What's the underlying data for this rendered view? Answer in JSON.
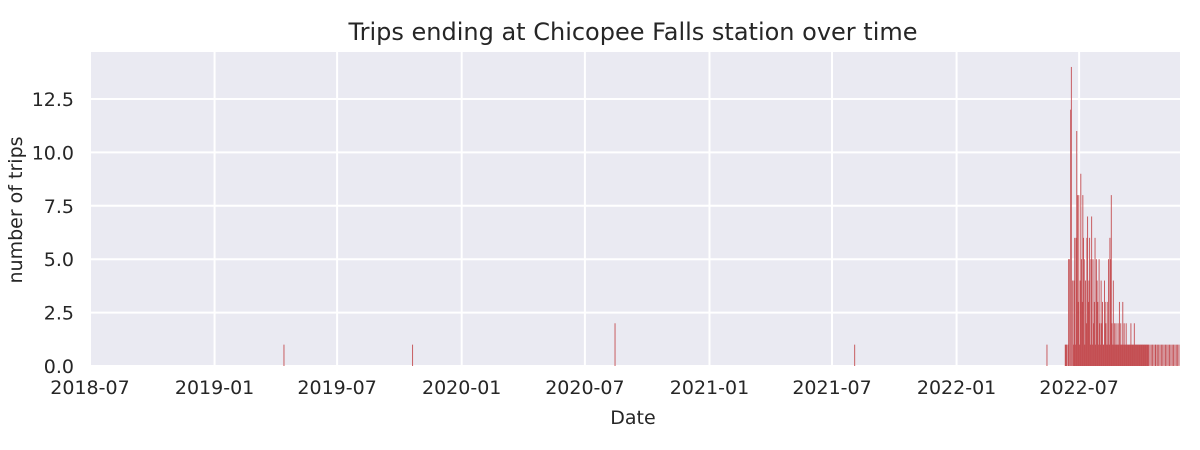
{
  "chart_data": {
    "type": "bar",
    "title": "Trips ending at Chicopee Falls station over time",
    "xlabel": "Date",
    "ylabel": "number of trips",
    "xlim": [
      "2018-07-01",
      "2022-11-27"
    ],
    "ylim": [
      0,
      14.7
    ],
    "x_ticks": [
      "2018-07",
      "2019-01",
      "2019-07",
      "2020-01",
      "2020-07",
      "2021-01",
      "2021-07",
      "2022-01",
      "2022-07"
    ],
    "y_ticks": [
      0.0,
      2.5,
      5.0,
      7.5,
      10.0,
      12.5
    ],
    "y_tick_labels": [
      "0.0",
      "2.5",
      "5.0",
      "7.5",
      "10.0",
      "12.5"
    ],
    "grid": true,
    "bar_color": "#c44e52",
    "plot_background": "#eaeaf2",
    "grid_color": "#ffffff",
    "series": [
      {
        "x": [
          "2019-04-13",
          "2019-10-20",
          "2020-08-14",
          "2021-08-03",
          "2022-05-14",
          "2022-06-10",
          "2022-06-11",
          "2022-06-12",
          "2022-06-14",
          "2022-06-15",
          "2022-06-16",
          "2022-06-18",
          "2022-06-19",
          "2022-06-21",
          "2022-06-22",
          "2022-06-23",
          "2022-06-24",
          "2022-06-25",
          "2022-06-26",
          "2022-06-27",
          "2022-06-28",
          "2022-06-29",
          "2022-06-30",
          "2022-07-01",
          "2022-07-02",
          "2022-07-03",
          "2022-07-04",
          "2022-07-05",
          "2022-07-06",
          "2022-07-07",
          "2022-07-08",
          "2022-07-09",
          "2022-07-10",
          "2022-07-11",
          "2022-07-12",
          "2022-07-13",
          "2022-07-14",
          "2022-07-15",
          "2022-07-16",
          "2022-07-17",
          "2022-07-18",
          "2022-07-19",
          "2022-07-20",
          "2022-07-21",
          "2022-07-22",
          "2022-07-23",
          "2022-07-24",
          "2022-07-25",
          "2022-07-26",
          "2022-07-27",
          "2022-07-28",
          "2022-07-29",
          "2022-07-30",
          "2022-07-31",
          "2022-08-01",
          "2022-08-02",
          "2022-08-03",
          "2022-08-04",
          "2022-08-05",
          "2022-08-06",
          "2022-08-07",
          "2022-08-08",
          "2022-08-09",
          "2022-08-10",
          "2022-08-11",
          "2022-08-12",
          "2022-08-13",
          "2022-08-14",
          "2022-08-15",
          "2022-08-16",
          "2022-08-17",
          "2022-08-18",
          "2022-08-19",
          "2022-08-20",
          "2022-08-21",
          "2022-08-22",
          "2022-08-23",
          "2022-08-24",
          "2022-08-25",
          "2022-08-26",
          "2022-08-27",
          "2022-08-28",
          "2022-08-29",
          "2022-08-30",
          "2022-08-31",
          "2022-09-01",
          "2022-09-02",
          "2022-09-03",
          "2022-09-04",
          "2022-09-05",
          "2022-09-06",
          "2022-09-07",
          "2022-09-08",
          "2022-09-09",
          "2022-09-10",
          "2022-09-11",
          "2022-09-12",
          "2022-09-13",
          "2022-09-14",
          "2022-09-15",
          "2022-09-16",
          "2022-09-17",
          "2022-09-18",
          "2022-09-19",
          "2022-09-20",
          "2022-09-21",
          "2022-09-22",
          "2022-09-23",
          "2022-09-24",
          "2022-09-25",
          "2022-09-26",
          "2022-09-27",
          "2022-09-28",
          "2022-09-29",
          "2022-09-30",
          "2022-10-01",
          "2022-10-02",
          "2022-10-03",
          "2022-10-04",
          "2022-10-05",
          "2022-10-06",
          "2022-10-07",
          "2022-10-08",
          "2022-10-09",
          "2022-10-10",
          "2022-10-11",
          "2022-10-13",
          "2022-10-15",
          "2022-10-17",
          "2022-10-19",
          "2022-10-21",
          "2022-10-22",
          "2022-10-24",
          "2022-10-26",
          "2022-10-28",
          "2022-10-30",
          "2022-11-01",
          "2022-11-03",
          "2022-11-05",
          "2022-11-07",
          "2022-11-09",
          "2022-11-11",
          "2022-11-13",
          "2022-11-15",
          "2022-11-17",
          "2022-11-19",
          "2022-11-21",
          "2022-11-23",
          "2022-11-25"
        ],
        "values": [
          1,
          1,
          2,
          1,
          1,
          1,
          1,
          1,
          1,
          5,
          5,
          12,
          14,
          4,
          1,
          4,
          6,
          1,
          6,
          11,
          8,
          3,
          8,
          1,
          4,
          9,
          5,
          3,
          8,
          6,
          5,
          1,
          4,
          2,
          6,
          7,
          3,
          4,
          6,
          1,
          5,
          7,
          1,
          5,
          2,
          3,
          6,
          1,
          5,
          4,
          3,
          1,
          5,
          2,
          1,
          4,
          2,
          3,
          1,
          1,
          4,
          3,
          2,
          1,
          3,
          1,
          5,
          1,
          6,
          5,
          8,
          2,
          1,
          4,
          1,
          2,
          1,
          2,
          1,
          1,
          2,
          1,
          3,
          1,
          2,
          1,
          1,
          3,
          1,
          2,
          1,
          1,
          2,
          1,
          1,
          1,
          1,
          1,
          1,
          2,
          1,
          1,
          1,
          1,
          2,
          1,
          1,
          1,
          1,
          1,
          1,
          1,
          1,
          1,
          1,
          1,
          1,
          1,
          1,
          1,
          1,
          1,
          1,
          1,
          1,
          1,
          1,
          1,
          1,
          1,
          1,
          1,
          1,
          1,
          1,
          1,
          1,
          1,
          1,
          1,
          1,
          1,
          1,
          1,
          1,
          1,
          1,
          1,
          1
        ]
      }
    ]
  }
}
